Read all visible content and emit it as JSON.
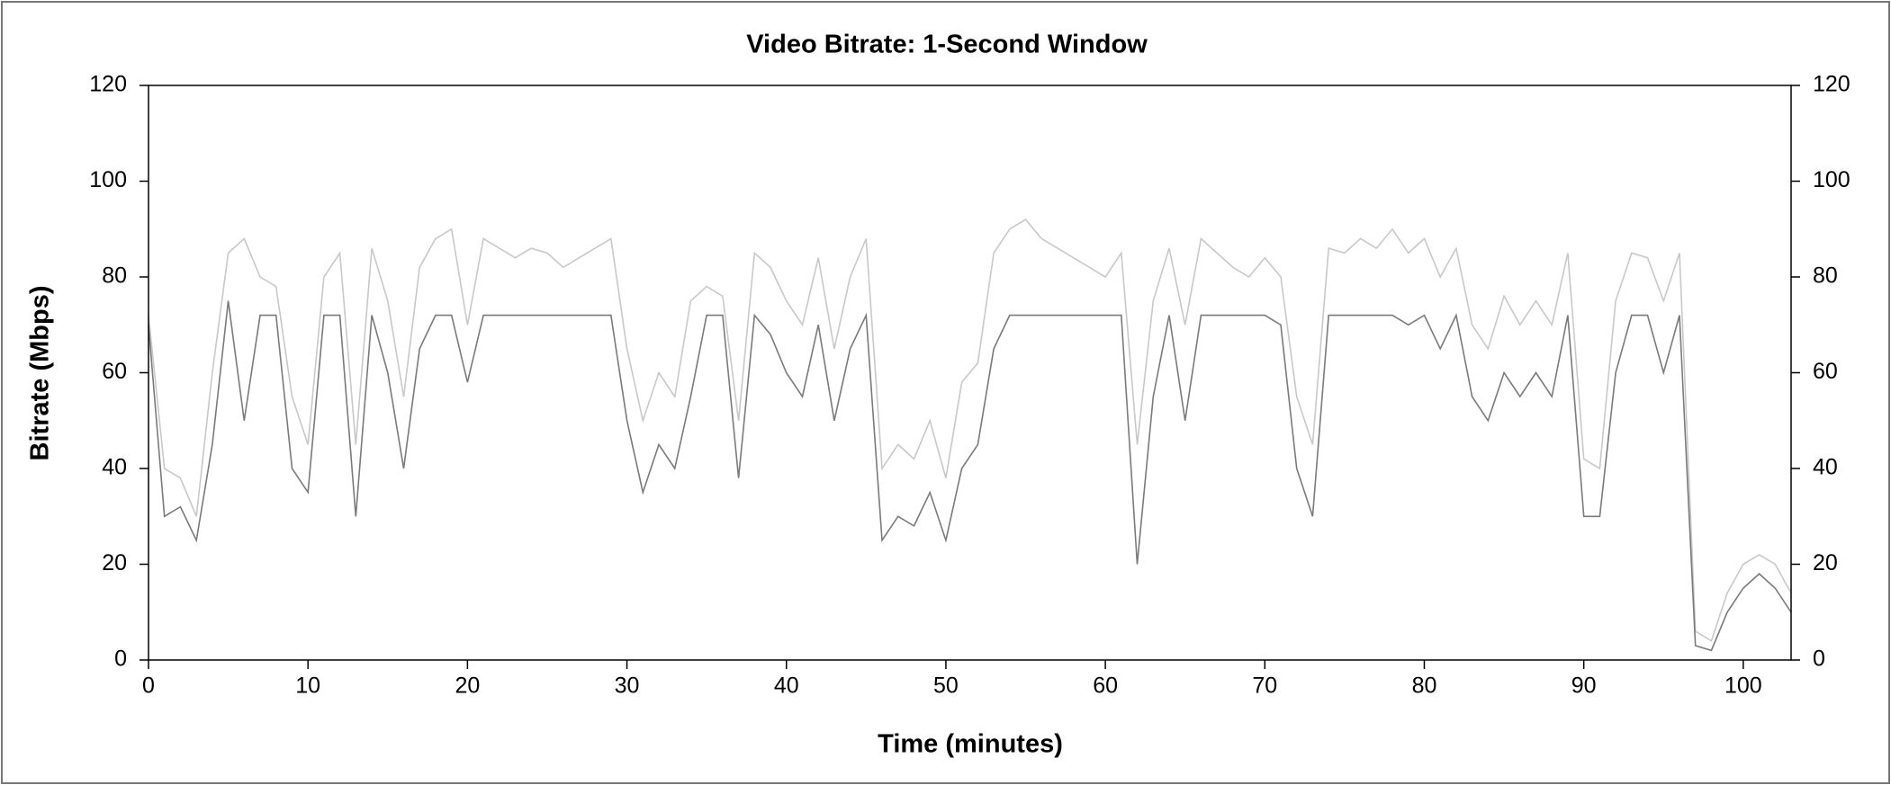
{
  "chart_data": {
    "type": "line",
    "title": "Video Bitrate: 1-Second Window",
    "xlabel": "Time (minutes)",
    "ylabel": "Bitrate (Mbps)",
    "x": [
      0,
      1,
      2,
      3,
      4,
      5,
      6,
      7,
      8,
      9,
      10,
      11,
      12,
      13,
      14,
      15,
      16,
      17,
      18,
      19,
      20,
      21,
      22,
      23,
      24,
      25,
      26,
      27,
      28,
      29,
      30,
      31,
      32,
      33,
      34,
      35,
      36,
      37,
      38,
      39,
      40,
      41,
      42,
      43,
      44,
      45,
      46,
      47,
      48,
      49,
      50,
      51,
      52,
      53,
      54,
      55,
      56,
      57,
      58,
      59,
      60,
      61,
      62,
      63,
      64,
      65,
      66,
      67,
      68,
      69,
      70,
      71,
      72,
      73,
      74,
      75,
      76,
      77,
      78,
      79,
      80,
      81,
      82,
      83,
      84,
      85,
      86,
      87,
      88,
      89,
      90,
      91,
      92,
      93,
      94,
      95,
      96,
      97,
      98,
      99,
      100,
      101,
      102,
      103
    ],
    "series": [
      {
        "color": "#c8c8c8",
        "values": [
          72,
          40,
          38,
          30,
          60,
          85,
          88,
          80,
          78,
          55,
          45,
          80,
          85,
          45,
          86,
          75,
          55,
          82,
          88,
          90,
          70,
          88,
          86,
          84,
          86,
          85,
          82,
          84,
          86,
          88,
          65,
          50,
          60,
          55,
          75,
          78,
          76,
          50,
          85,
          82,
          75,
          70,
          84,
          65,
          80,
          88,
          40,
          45,
          42,
          50,
          38,
          58,
          62,
          85,
          90,
          92,
          88,
          86,
          84,
          82,
          80,
          85,
          45,
          75,
          86,
          70,
          88,
          85,
          82,
          80,
          84,
          80,
          55,
          45,
          86,
          85,
          88,
          86,
          90,
          85,
          88,
          80,
          86,
          70,
          65,
          76,
          70,
          75,
          70,
          85,
          42,
          40,
          75,
          85,
          84,
          75,
          85,
          6,
          4,
          14,
          20,
          22,
          20,
          14
        ]
      },
      {
        "color": "#7a7a7a",
        "values": [
          70,
          30,
          32,
          25,
          45,
          75,
          50,
          72,
          72,
          40,
          35,
          72,
          72,
          30,
          72,
          60,
          40,
          65,
          72,
          72,
          58,
          72,
          72,
          72,
          72,
          72,
          72,
          72,
          72,
          72,
          50,
          35,
          45,
          40,
          55,
          72,
          72,
          38,
          72,
          68,
          60,
          55,
          70,
          50,
          65,
          72,
          25,
          30,
          28,
          35,
          25,
          40,
          45,
          65,
          72,
          72,
          72,
          72,
          72,
          72,
          72,
          72,
          20,
          55,
          72,
          50,
          72,
          72,
          72,
          72,
          72,
          70,
          40,
          30,
          72,
          72,
          72,
          72,
          72,
          70,
          72,
          65,
          72,
          55,
          50,
          60,
          55,
          60,
          55,
          72,
          30,
          30,
          60,
          72,
          72,
          60,
          72,
          3,
          2,
          10,
          15,
          18,
          15,
          10
        ]
      }
    ],
    "xlim": [
      0,
      103
    ],
    "xticks": [
      0,
      10,
      20,
      30,
      40,
      50,
      60,
      70,
      80,
      90,
      100
    ],
    "ylim": [
      0,
      120
    ],
    "yticks": [
      0,
      20,
      40,
      60,
      80,
      100,
      120
    ],
    "y2lim": [
      0,
      120
    ],
    "y2ticks": [
      0,
      20,
      40,
      60,
      80,
      100,
      120
    ]
  }
}
